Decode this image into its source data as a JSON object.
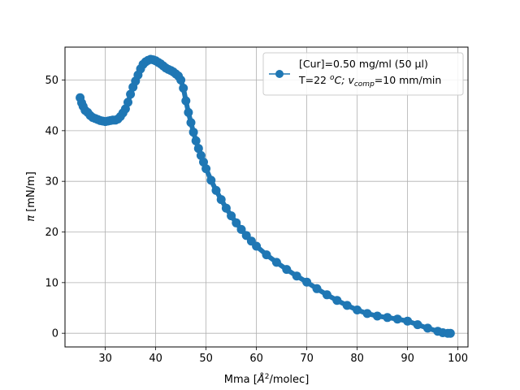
{
  "chart_data": {
    "type": "scatter",
    "xlabel_prefix": "Mma [",
    "xlabel_sup": "2",
    "xlabel_suffix": "/molec]",
    "xlabel_angstrom": "Å",
    "ylabel_pi": "π",
    "ylabel_rest": " [mN/m]",
    "xlim": [
      22,
      102
    ],
    "ylim": [
      -2.7,
      56.5
    ],
    "xticks": [
      30,
      40,
      50,
      60,
      70,
      80,
      90,
      100
    ],
    "yticks": [
      0,
      10,
      20,
      30,
      40,
      50
    ],
    "grid": true,
    "legend_placement": "upper right",
    "series": [
      {
        "name_line1": "[Cur]=0.50 mg/ml (50 μl)",
        "name_line2_T": "T=22 ",
        "name_line2_deg": "o",
        "name_line2_C": "C; ",
        "name_line2_v": "v",
        "name_line2_sub": "comp",
        "name_line2_rest": "=10 mm/min",
        "color": "#1f77b4",
        "x": [
          25.0,
          25.3,
          25.6,
          26.0,
          26.5,
          27.0,
          27.5,
          28.0,
          28.5,
          29.0,
          29.5,
          30.0,
          30.5,
          31.0,
          31.5,
          32.0,
          32.5,
          33.0,
          33.5,
          34.0,
          34.5,
          35.0,
          35.5,
          36.0,
          36.5,
          37.0,
          37.5,
          38.0,
          38.5,
          39.0,
          39.5,
          40.0,
          40.5,
          41.0,
          41.5,
          42.0,
          42.5,
          43.0,
          43.5,
          44.0,
          44.5,
          45.0,
          45.5,
          46.0,
          46.5,
          47.0,
          47.5,
          48.0,
          48.5,
          49.0,
          49.5,
          50.0,
          51.0,
          52.0,
          53.0,
          54.0,
          55.0,
          56.0,
          57.0,
          58.0,
          59.0,
          60.0,
          62.0,
          64.0,
          66.0,
          68.0,
          70.0,
          72.0,
          74.0,
          76.0,
          78.0,
          80.0,
          82.0,
          84.0,
          86.0,
          88.0,
          90.0,
          92.0,
          94.0,
          96.0,
          97.0,
          98.0,
          98.5
        ],
        "y": [
          46.5,
          45.5,
          44.8,
          44.0,
          43.6,
          43.0,
          42.6,
          42.4,
          42.2,
          42.0,
          41.9,
          41.8,
          41.9,
          42.0,
          42.1,
          42.1,
          42.3,
          42.8,
          43.5,
          44.3,
          45.6,
          47.2,
          48.6,
          49.8,
          51.0,
          52.2,
          53.1,
          53.6,
          53.9,
          54.1,
          54.0,
          53.8,
          53.5,
          53.2,
          52.8,
          52.4,
          52.1,
          51.9,
          51.6,
          51.2,
          50.8,
          50.0,
          48.4,
          45.9,
          43.6,
          41.6,
          39.7,
          38.0,
          36.5,
          35.1,
          33.8,
          32.5,
          30.2,
          28.2,
          26.4,
          24.7,
          23.2,
          21.8,
          20.5,
          19.3,
          18.2,
          17.2,
          15.5,
          14.0,
          12.6,
          11.3,
          10.1,
          8.8,
          7.6,
          6.5,
          5.5,
          4.6,
          3.9,
          3.4,
          3.1,
          2.8,
          2.4,
          1.7,
          1.0,
          0.4,
          0.1,
          0.0,
          0.0
        ]
      }
    ]
  }
}
